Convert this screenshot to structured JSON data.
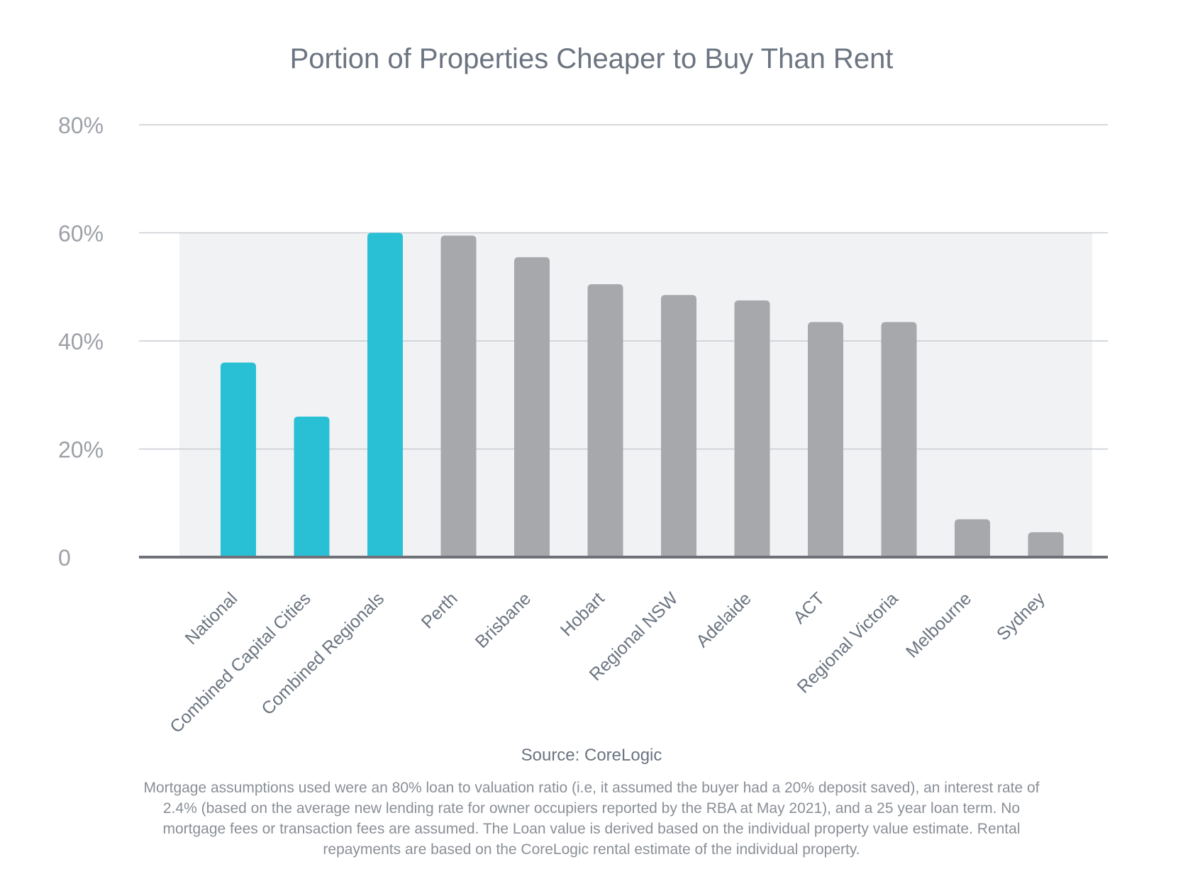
{
  "chart_data": {
    "type": "bar",
    "title": "Portion of Properties Cheaper to Buy Than Rent",
    "xlabel": "",
    "ylabel": "",
    "ylim": [
      0,
      80
    ],
    "y_ticks": [
      {
        "value": 0,
        "label": "0"
      },
      {
        "value": 20,
        "label": "20%"
      },
      {
        "value": 40,
        "label": "40%"
      },
      {
        "value": 60,
        "label": "60%"
      },
      {
        "value": 80,
        "label": "80%"
      }
    ],
    "categories": [
      "National",
      "Combined Capital Cities",
      "Combined Regionals",
      "Perth",
      "Brisbane",
      "Hobart",
      "Regional NSW",
      "Adelaide",
      "ACT",
      "Regional Victoria",
      "Melbourne",
      "Sydney"
    ],
    "values": [
      36,
      26,
      60,
      59.5,
      55.5,
      50.5,
      48.5,
      47.5,
      43.5,
      43.5,
      7,
      4.6
    ],
    "highlight_categories": [
      "National",
      "Combined Capital Cities",
      "Combined Regionals"
    ],
    "shaded_band": [
      0,
      60
    ],
    "grid": true,
    "colors": {
      "highlight": "#29c0d6",
      "default": "#a7a8ac",
      "band": "#f1f2f4"
    }
  },
  "source": "Source: CoreLogic",
  "footnote": "Mortgage assumptions used were an 80% loan to valuation ratio (i.e, it assumed the buyer had a 20% deposit saved), an interest rate of 2.4% (based on the average new lending rate for owner occupiers reported by the RBA at May 2021), and a 25 year loan term. No mortgage fees or transaction fees are assumed. The Loan value is derived  based on the individual property value estimate. Rental repayments are based on the CoreLogic rental estimate of the individual property."
}
